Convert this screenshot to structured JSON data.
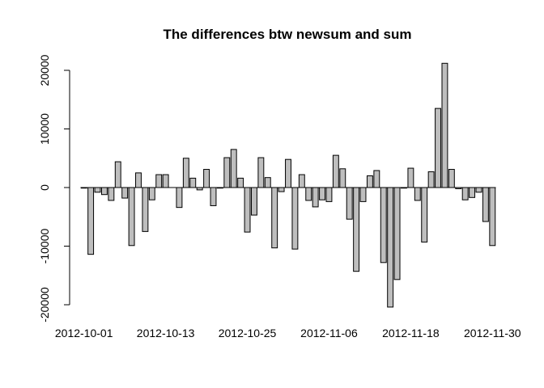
{
  "chart_data": {
    "type": "bar",
    "title": "The differences btw newsum and sum",
    "xlabel": "",
    "ylabel": "",
    "ylim": [
      -22000,
      23000
    ],
    "y_ticks": [
      -20000,
      -10000,
      0,
      10000,
      20000
    ],
    "y_tick_labels": [
      "-20000",
      "-10000",
      "0",
      "10000",
      "20000"
    ],
    "x_tick_labels": [
      {
        "index": 0,
        "label": "2012-10-01"
      },
      {
        "index": 12,
        "label": "2012-10-13"
      },
      {
        "index": 24,
        "label": "2012-10-25"
      },
      {
        "index": 36,
        "label": "2012-11-06"
      },
      {
        "index": 48,
        "label": "2012-11-18"
      },
      {
        "index": 60,
        "label": "2012-11-30"
      }
    ],
    "bar_color": "#bebebe",
    "values": [
      -100,
      -11400,
      -800,
      -1200,
      -2200,
      4400,
      -1800,
      -9900,
      2500,
      -7500,
      -2100,
      2200,
      2200,
      0,
      -3400,
      5000,
      1600,
      -400,
      3100,
      -3100,
      -100,
      5100,
      6500,
      1600,
      -7600,
      -4700,
      5100,
      1700,
      -10300,
      -700,
      4800,
      -10500,
      2200,
      -2200,
      -3300,
      -2100,
      -2400,
      5500,
      3200,
      -5400,
      -14300,
      -2400,
      2000,
      2900,
      -12800,
      -20400,
      -15700,
      -100,
      3300,
      -2200,
      -9300,
      2700,
      13500,
      21200,
      3100,
      -200,
      -2100,
      -1700,
      -800,
      -5800,
      -9900
    ]
  }
}
